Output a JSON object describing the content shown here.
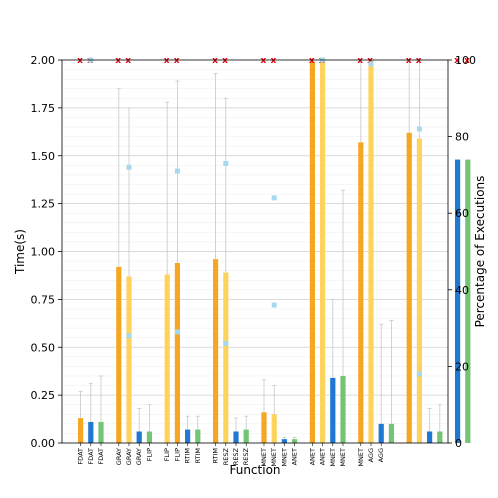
{
  "chart_data": {
    "type": "bar",
    "xlabel": "Function",
    "ylabel": "Time(s)",
    "y2label": "Percentage of Executions",
    "ylim": [
      0,
      2.0
    ],
    "y2lim": [
      0,
      100
    ],
    "yticks": [
      "0.00",
      "0.25",
      "0.50",
      "0.75",
      "1.00",
      "1.25",
      "1.50",
      "1.75",
      "2.00"
    ],
    "y2ticks": [
      "0",
      "20",
      "40",
      "60",
      "80",
      "100"
    ],
    "grid": true,
    "categories": [
      "FDAT",
      "FDAT",
      "FDAT",
      "GRAY",
      "GRAY",
      "GRAY",
      "FLIP",
      "FLIP",
      "FLIP",
      "RTIM",
      "RTIM",
      "RTIM",
      "RESZ",
      "RESZ",
      "RESZ",
      "MNET",
      "MNET",
      "MNET",
      "ANET",
      "ANET",
      "ANET",
      "MNET",
      "MNET",
      "MNET",
      "AGG",
      "AGG"
    ],
    "groups": [
      {
        "name": "FDAT",
        "bars": [
          {
            "color": "#f5a623",
            "value": 0.13,
            "err_high": 0.27
          },
          {
            "color": "#1f78d1",
            "value": 0.11,
            "err_high": 0.31
          },
          {
            "color": "#74c476",
            "value": 0.11,
            "err_high": 0.35
          }
        ],
        "pct_marker": 100,
        "red_markers": 2
      },
      {
        "name": "GRAY",
        "bars": [
          {
            "color": "#f5a623",
            "value": 0.92,
            "err_high": 1.85
          },
          {
            "color": "#fdd35c",
            "value": 0.87,
            "err_high": 1.75
          },
          {
            "color": "#1f78d1",
            "value": 0.06,
            "err_high": 0.18
          },
          {
            "color": "#74c476",
            "value": 0.06,
            "err_high": 0.2
          }
        ],
        "pct_marker": 72,
        "pct_marker2": 28,
        "red_markers": 2
      },
      {
        "name": "FLIP",
        "bars": [
          {
            "color": "#fdd35c",
            "value": 0.88,
            "err_high": 1.78
          },
          {
            "color": "#f5a623",
            "value": 0.94,
            "err_high": 1.89
          },
          {
            "color": "#1f78d1",
            "value": 0.07,
            "err_high": 0.14
          },
          {
            "color": "#74c476",
            "value": 0.07,
            "err_high": 0.14
          }
        ],
        "pct_marker": 71,
        "pct_marker2": 29,
        "red_markers": 2
      },
      {
        "name": "RTIM",
        "bars": [
          {
            "color": "#f5a623",
            "value": 0.96,
            "err_high": 1.93
          },
          {
            "color": "#fdd35c",
            "value": 0.89,
            "err_high": 1.8
          },
          {
            "color": "#1f78d1",
            "value": 0.06,
            "err_high": 0.13
          },
          {
            "color": "#74c476",
            "value": 0.07,
            "err_high": 0.14
          }
        ],
        "pct_marker": 73,
        "pct_marker2": 26,
        "red_markers": 2
      },
      {
        "name": "RESZ",
        "bars": [
          {
            "color": "#f5a623",
            "value": 0.16,
            "err_high": 0.33
          },
          {
            "color": "#fdd35c",
            "value": 0.15,
            "err_high": 0.3
          },
          {
            "color": "#1f78d1",
            "value": 0.02,
            "err_high": 0.03
          },
          {
            "color": "#74c476",
            "value": 0.02,
            "err_high": 0.03
          }
        ],
        "pct_marker": 64,
        "pct_marker2": 36,
        "red_markers": 2
      },
      {
        "name": "MNET",
        "bars": [
          {
            "color": "#f5a623",
            "value": 1.99,
            "err_high": 2.0
          },
          {
            "color": "#fdd35c",
            "value": 2.0,
            "err_high": 2.0
          },
          {
            "color": "#1f78d1",
            "value": 0.34,
            "err_high": 0.75
          },
          {
            "color": "#74c476",
            "value": 0.35,
            "err_high": 1.32
          }
        ],
        "pct_marker": 100,
        "red_markers": 2
      },
      {
        "name": "ANET",
        "bars": [
          {
            "color": "#f5a623",
            "value": 1.57,
            "err_high": 2.0
          },
          {
            "color": "#fdd35c",
            "value": 2.0,
            "err_high": 2.0
          },
          {
            "color": "#1f78d1",
            "value": 0.1,
            "err_high": 0.62
          },
          {
            "color": "#74c476",
            "value": 0.1,
            "err_high": 0.64
          }
        ],
        "pct_marker": 99,
        "red_markers": 2
      },
      {
        "name": "MNET",
        "bars": [
          {
            "color": "#f5a623",
            "value": 1.62,
            "err_high": 2.0
          },
          {
            "color": "#fdd35c",
            "value": 1.59,
            "err_high": 2.0
          },
          {
            "color": "#1f78d1",
            "value": 0.06,
            "err_high": 0.18
          },
          {
            "color": "#74c476",
            "value": 0.06,
            "err_high": 0.2
          }
        ],
        "pct_marker": 82,
        "pct_marker2": 18,
        "red_markers": 2
      },
      {
        "name": "AGG",
        "bars": [
          {
            "color": "#1f78d1",
            "value": 1.48,
            "err_high": 1.48
          },
          {
            "color": "#74c476",
            "value": 1.48,
            "err_high": 1.48
          }
        ],
        "red_markers": 2
      }
    ]
  }
}
